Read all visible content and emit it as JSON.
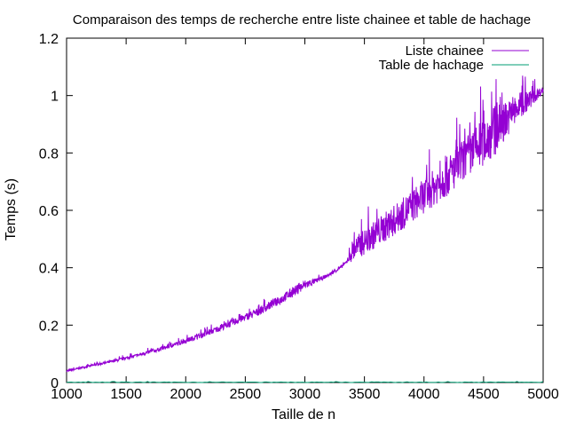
{
  "chart_data": {
    "type": "line",
    "title": "Comparaison des temps de recherche entre liste chainee et table de hachage",
    "xlabel": "Taille de n",
    "ylabel": "Temps (s)",
    "xlim": [
      1000,
      5000
    ],
    "ylim": [
      0,
      1.2
    ],
    "xticks": [
      1000,
      1500,
      2000,
      2500,
      3000,
      3500,
      4000,
      4500,
      5000
    ],
    "yticks": [
      0,
      0.2,
      0.4,
      0.6,
      0.8,
      1,
      1.2
    ],
    "ytick_labels": [
      "0",
      "0.2",
      "0.4",
      "0.6",
      "0.8",
      "1",
      "1.2"
    ],
    "grid": false,
    "legend_position": "top-right",
    "series": [
      {
        "name": "Liste chainee",
        "color": "#9400d3",
        "x": [
          1000,
          1200,
          1400,
          1600,
          1800,
          2000,
          2200,
          2400,
          2600,
          2800,
          3000,
          3100,
          3200,
          3300,
          3350,
          3380,
          3400,
          3500,
          3600,
          3800,
          4000,
          4200,
          4400,
          4600,
          4700,
          4800,
          5000
        ],
        "y": [
          0.04,
          0.058,
          0.075,
          0.095,
          0.118,
          0.145,
          0.175,
          0.21,
          0.245,
          0.29,
          0.34,
          0.355,
          0.375,
          0.4,
          0.42,
          0.44,
          0.46,
          0.49,
          0.52,
          0.58,
          0.65,
          0.72,
          0.8,
          0.88,
          0.92,
          0.96,
          1.02
        ],
        "noise": [
          0.003,
          0.004,
          0.005,
          0.006,
          0.007,
          0.008,
          0.01,
          0.012,
          0.014,
          0.016,
          0.018,
          0.008,
          0.006,
          0.006,
          0.005,
          0.02,
          0.04,
          0.045,
          0.05,
          0.055,
          0.06,
          0.07,
          0.08,
          0.09,
          0.06,
          0.05,
          0.01
        ]
      },
      {
        "name": "Table de hachage",
        "color": "#009e73",
        "x": [
          1000,
          5000
        ],
        "y": [
          0.001,
          0.001
        ],
        "noise": [
          0.001,
          0.001
        ]
      }
    ]
  }
}
